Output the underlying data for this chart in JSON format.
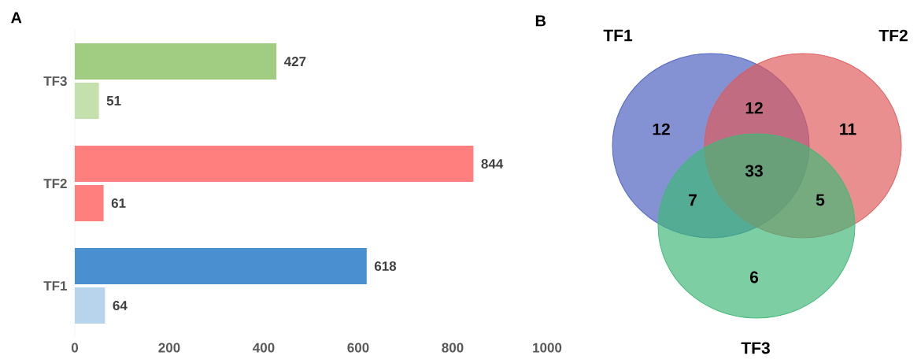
{
  "chart_data": [
    {
      "type": "bar",
      "title": "A",
      "orientation": "horizontal",
      "categories": [
        "TF3",
        "TF2",
        "TF1"
      ],
      "series": [
        {
          "colors": [
            "#a0cd82",
            "#ff7f7f",
            "#4a8fd0"
          ],
          "values": [
            427,
            844,
            618
          ]
        },
        {
          "colors": [
            "#c3e0ad",
            "#ff7f7f",
            "#b8d3ec"
          ],
          "values": [
            51,
            61,
            64
          ]
        }
      ],
      "xlim": [
        0,
        1000
      ],
      "xticks": [
        0,
        200,
        400,
        600,
        800,
        1000
      ],
      "data_labels": true
    },
    {
      "type": "other",
      "title": "B",
      "categories": [
        "TF1",
        "TF2",
        "TF3"
      ],
      "colors": [
        "#4a5fc0",
        "#e05a5a",
        "#40b878"
      ],
      "annotations": [
        "12",
        "11",
        "6",
        "12",
        "7",
        "5",
        "33"
      ]
    }
  ]
}
